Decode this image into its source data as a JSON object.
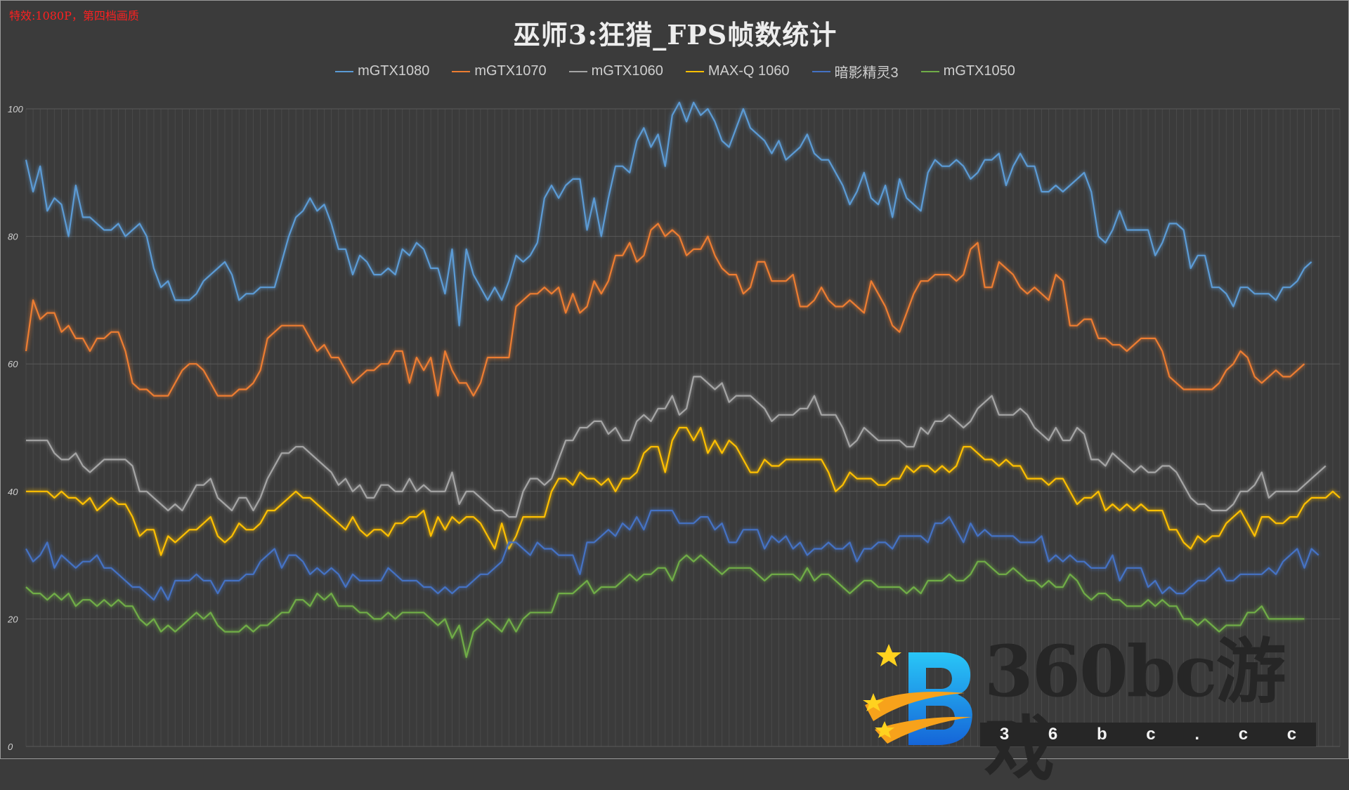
{
  "note": "特效:1080P，第四档画质",
  "watermark": {
    "text": "360bc游戏",
    "sub": [
      "3",
      "6",
      "b",
      "c",
      ".",
      "c",
      "c"
    ]
  },
  "chart_data": {
    "type": "line",
    "title": "巫师3:狂猎_FPS帧数统计",
    "xlabel": "",
    "ylabel": "",
    "ylim": [
      0,
      100
    ],
    "yticks": [
      0,
      20,
      40,
      60,
      80,
      100
    ],
    "grid": true,
    "legend": "top-center",
    "series": [
      {
        "name": "mGTX1080",
        "color": "#5b9bd5",
        "values": [
          92,
          87,
          91,
          84,
          86,
          85,
          80,
          88,
          83,
          83,
          82,
          81,
          81,
          82,
          80,
          81,
          82,
          80,
          75,
          72,
          73,
          70,
          70,
          70,
          71,
          73,
          74,
          75,
          76,
          74,
          70,
          71,
          71,
          72,
          72,
          72,
          76,
          80,
          83,
          84,
          86,
          84,
          85,
          82,
          78,
          78,
          74,
          77,
          76,
          74,
          74,
          75,
          74,
          78,
          77,
          79,
          78,
          75,
          75,
          71,
          78,
          66,
          78,
          74,
          72,
          70,
          72,
          70,
          73,
          77,
          76,
          77,
          79,
          86,
          88,
          86,
          88,
          89,
          89,
          81,
          86,
          80,
          86,
          91,
          91,
          90,
          95,
          97,
          94,
          96,
          91,
          99,
          101,
          98,
          101,
          99,
          100,
          98,
          95,
          94,
          97,
          100,
          97,
          96,
          95,
          93,
          95,
          92,
          93,
          94,
          96,
          93,
          92,
          92,
          90,
          88,
          85,
          87,
          90,
          86,
          85,
          88,
          83,
          89,
          86,
          85,
          84,
          90,
          92,
          91,
          91,
          92,
          91,
          89,
          90,
          92,
          92,
          93,
          88,
          91,
          93,
          91,
          91,
          87,
          87,
          88,
          87,
          88,
          89,
          90,
          87,
          80,
          79,
          81,
          84,
          81,
          81,
          81,
          81,
          77,
          79,
          82,
          82,
          81,
          75,
          77,
          77,
          72,
          72,
          71,
          69,
          72,
          72,
          71,
          71,
          71,
          70,
          72,
          72,
          73,
          75,
          76
        ]
      },
      {
        "name": "mGTX1070",
        "color": "#ed7d31",
        "values": [
          62,
          70,
          67,
          68,
          68,
          65,
          66,
          64,
          64,
          62,
          64,
          64,
          65,
          65,
          62,
          57,
          56,
          56,
          55,
          55,
          55,
          57,
          59,
          60,
          60,
          59,
          57,
          55,
          55,
          55,
          56,
          56,
          57,
          59,
          64,
          65,
          66,
          66,
          66,
          66,
          64,
          62,
          63,
          61,
          61,
          59,
          57,
          58,
          59,
          59,
          60,
          60,
          62,
          62,
          57,
          61,
          59,
          61,
          55,
          62,
          59,
          57,
          57,
          55,
          57,
          61,
          61,
          61,
          61,
          69,
          70,
          71,
          71,
          72,
          71,
          72,
          68,
          71,
          68,
          69,
          73,
          71,
          73,
          77,
          77,
          79,
          76,
          77,
          81,
          82,
          80,
          81,
          80,
          77,
          78,
          78,
          80,
          77,
          75,
          74,
          74,
          71,
          72,
          76,
          76,
          73,
          73,
          73,
          74,
          69,
          69,
          70,
          72,
          70,
          69,
          69,
          70,
          69,
          68,
          73,
          71,
          69,
          66,
          65,
          68,
          71,
          73,
          73,
          74,
          74,
          74,
          73,
          74,
          78,
          79,
          72,
          72,
          76,
          75,
          74,
          72,
          71,
          72,
          71,
          70,
          74,
          73,
          66,
          66,
          67,
          67,
          64,
          64,
          63,
          63,
          62,
          63,
          64,
          64,
          64,
          62,
          58,
          57,
          56,
          56,
          56,
          56,
          56,
          57,
          59,
          60,
          62,
          61,
          58,
          57,
          58,
          59,
          58,
          58,
          59,
          60
        ]
      },
      {
        "name": "mGTX1060",
        "color": "#a5a5a5",
        "values": [
          48,
          48,
          48,
          48,
          46,
          45,
          45,
          46,
          44,
          43,
          44,
          45,
          45,
          45,
          45,
          44,
          40,
          40,
          39,
          38,
          37,
          38,
          37,
          39,
          41,
          41,
          42,
          39,
          38,
          37,
          39,
          39,
          37,
          39,
          42,
          44,
          46,
          46,
          47,
          47,
          46,
          45,
          44,
          43,
          41,
          42,
          40,
          41,
          39,
          39,
          41,
          41,
          40,
          40,
          42,
          40,
          41,
          40,
          40,
          40,
          43,
          38,
          40,
          40,
          39,
          38,
          37,
          37,
          36,
          36,
          40,
          42,
          42,
          41,
          42,
          45,
          48,
          48,
          50,
          50,
          51,
          51,
          49,
          50,
          48,
          48,
          51,
          52,
          51,
          53,
          53,
          55,
          52,
          53,
          58,
          58,
          57,
          56,
          57,
          54,
          55,
          55,
          55,
          54,
          53,
          51,
          52,
          52,
          52,
          53,
          53,
          55,
          52,
          52,
          52,
          50,
          47,
          48,
          50,
          49,
          48,
          48,
          48,
          48,
          47,
          47,
          50,
          49,
          51,
          51,
          52,
          51,
          50,
          51,
          53,
          54,
          55,
          52,
          52,
          52,
          53,
          52,
          50,
          49,
          48,
          50,
          48,
          48,
          50,
          49,
          45,
          45,
          44,
          46,
          45,
          44,
          43,
          44,
          43,
          43,
          44,
          44,
          43,
          41,
          39,
          38,
          38,
          37,
          37,
          37,
          38,
          40,
          40,
          41,
          43,
          39,
          40,
          40,
          40,
          40,
          41,
          42,
          43,
          44
        ]
      },
      {
        "name": "MAX-Q 1060",
        "color": "#ffc000",
        "values": [
          40,
          40,
          40,
          40,
          39,
          40,
          39,
          39,
          38,
          39,
          37,
          38,
          39,
          38,
          38,
          36,
          33,
          34,
          34,
          30,
          33,
          32,
          33,
          34,
          34,
          35,
          36,
          33,
          32,
          33,
          35,
          34,
          34,
          35,
          37,
          37,
          38,
          39,
          40,
          39,
          39,
          38,
          37,
          36,
          35,
          34,
          36,
          34,
          33,
          34,
          34,
          33,
          35,
          35,
          36,
          36,
          37,
          33,
          36,
          34,
          36,
          35,
          36,
          36,
          35,
          33,
          31,
          35,
          31,
          33,
          36,
          36,
          36,
          36,
          40,
          42,
          42,
          41,
          43,
          42,
          42,
          41,
          42,
          40,
          42,
          42,
          43,
          46,
          47,
          47,
          43,
          48,
          50,
          50,
          48,
          50,
          46,
          48,
          46,
          48,
          47,
          45,
          43,
          43,
          45,
          44,
          44,
          45,
          45,
          45,
          45,
          45,
          45,
          43,
          40,
          41,
          43,
          42,
          42,
          42,
          41,
          41,
          42,
          42,
          44,
          43,
          44,
          44,
          43,
          44,
          43,
          44,
          47,
          47,
          46,
          45,
          45,
          44,
          45,
          44,
          44,
          42,
          42,
          42,
          41,
          42,
          42,
          40,
          38,
          39,
          39,
          40,
          37,
          38,
          37,
          38,
          37,
          38,
          37,
          37,
          37,
          34,
          34,
          32,
          31,
          33,
          32,
          33,
          33,
          35,
          36,
          37,
          35,
          33,
          36,
          36,
          35,
          35,
          36,
          36,
          38,
          39,
          39,
          39,
          40,
          39
        ]
      },
      {
        "name": "暗影精灵3",
        "color": "#4472c4",
        "values": [
          31,
          29,
          30,
          32,
          28,
          30,
          29,
          28,
          29,
          29,
          30,
          28,
          28,
          27,
          26,
          25,
          25,
          24,
          23,
          25,
          23,
          26,
          26,
          26,
          27,
          26,
          26,
          24,
          26,
          26,
          26,
          27,
          27,
          29,
          30,
          31,
          28,
          30,
          30,
          29,
          27,
          28,
          27,
          28,
          27,
          25,
          27,
          26,
          26,
          26,
          26,
          28,
          27,
          26,
          26,
          26,
          25,
          25,
          24,
          25,
          24,
          25,
          25,
          26,
          27,
          27,
          28,
          29,
          32,
          32,
          31,
          30,
          32,
          31,
          31,
          30,
          30,
          30,
          27,
          32,
          32,
          33,
          34,
          33,
          35,
          34,
          36,
          34,
          37,
          37,
          37,
          37,
          35,
          35,
          35,
          36,
          36,
          34,
          35,
          32,
          32,
          34,
          34,
          34,
          31,
          33,
          32,
          33,
          31,
          32,
          30,
          31,
          31,
          32,
          31,
          31,
          32,
          29,
          31,
          31,
          32,
          32,
          31,
          33,
          33,
          33,
          33,
          32,
          35,
          35,
          36,
          34,
          32,
          35,
          33,
          34,
          33,
          33,
          33,
          33,
          32,
          32,
          32,
          33,
          29,
          30,
          29,
          30,
          29,
          29,
          28,
          28,
          28,
          30,
          26,
          28,
          28,
          28,
          25,
          26,
          24,
          25,
          24,
          24,
          25,
          26,
          26,
          27,
          28,
          26,
          26,
          27,
          27,
          27,
          27,
          28,
          27,
          29,
          30,
          31,
          28,
          31,
          30
        ]
      },
      {
        "name": "mGTX1050",
        "color": "#70ad47",
        "values": [
          25,
          24,
          24,
          23,
          24,
          23,
          24,
          22,
          23,
          23,
          22,
          23,
          22,
          23,
          22,
          22,
          20,
          19,
          20,
          18,
          19,
          18,
          19,
          20,
          21,
          20,
          21,
          19,
          18,
          18,
          18,
          19,
          18,
          19,
          19,
          20,
          21,
          21,
          23,
          23,
          22,
          24,
          23,
          24,
          22,
          22,
          22,
          21,
          21,
          20,
          20,
          21,
          20,
          21,
          21,
          21,
          21,
          20,
          19,
          20,
          17,
          19,
          14,
          18,
          19,
          20,
          19,
          18,
          20,
          18,
          20,
          21,
          21,
          21,
          21,
          24,
          24,
          24,
          25,
          26,
          24,
          25,
          25,
          25,
          26,
          27,
          26,
          27,
          27,
          28,
          28,
          26,
          29,
          30,
          29,
          30,
          29,
          28,
          27,
          28,
          28,
          28,
          28,
          27,
          26,
          27,
          27,
          27,
          27,
          26,
          28,
          26,
          27,
          27,
          26,
          25,
          24,
          25,
          26,
          26,
          25,
          25,
          25,
          25,
          24,
          25,
          24,
          26,
          26,
          26,
          27,
          26,
          26,
          27,
          29,
          29,
          28,
          27,
          27,
          28,
          27,
          26,
          26,
          25,
          26,
          25,
          25,
          27,
          26,
          24,
          23,
          24,
          24,
          23,
          23,
          22,
          22,
          22,
          23,
          22,
          23,
          22,
          22,
          20,
          20,
          19,
          20,
          19,
          18,
          19,
          19,
          19,
          21,
          21,
          22,
          20,
          20,
          20,
          20,
          20,
          20
        ]
      }
    ]
  }
}
